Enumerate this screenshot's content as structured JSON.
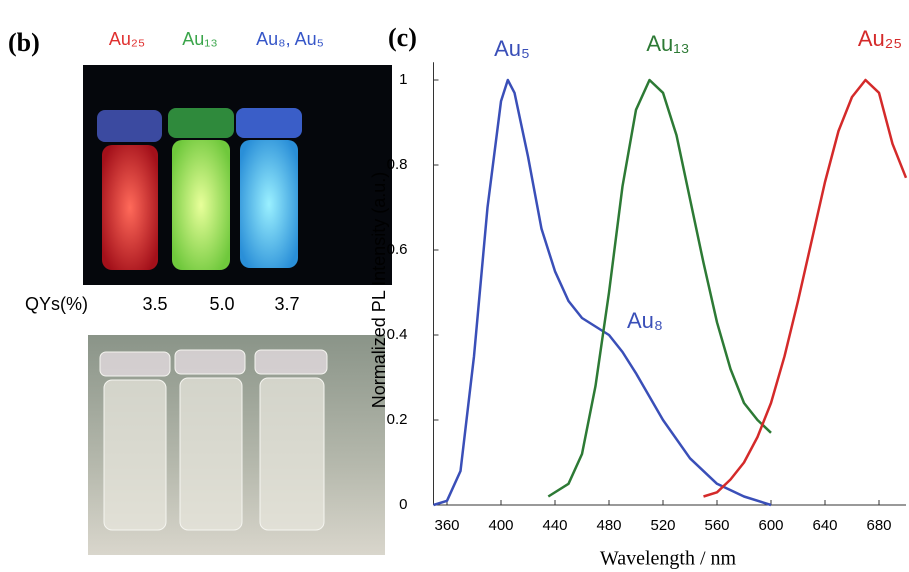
{
  "panel_b": {
    "label": "(b)",
    "photo_labels": [
      {
        "text": "Au₂₅",
        "color": "#e0302f"
      },
      {
        "text": "Au₁₃",
        "color": "#3aa54a"
      },
      {
        "text": "Au₈, Au₅",
        "color": "#3656c8"
      }
    ],
    "qy_label": "QYs(%)",
    "qy_values": [
      "3.5",
      "5.0",
      "3.7"
    ]
  },
  "chart_data": {
    "type": "line",
    "panel_label": "(c)",
    "x_label": "Wavelength / nm",
    "y_label": "Normalized PL Intensity (a.u.)",
    "xlim": [
      350,
      700
    ],
    "ylim": [
      0,
      1.03
    ],
    "xticks": [
      360,
      400,
      440,
      480,
      520,
      560,
      600,
      640,
      680
    ],
    "yticks": [
      0,
      0.2,
      0.4,
      0.6,
      0.8,
      1
    ],
    "annotation": "Au₈",
    "series": [
      {
        "name": "Au₅",
        "color": "#3a4fb8",
        "x": [
          350,
          360,
          370,
          380,
          390,
          400,
          405,
          410,
          420,
          430,
          440,
          450,
          460,
          470,
          480,
          490,
          500,
          520,
          540,
          560,
          580,
          600
        ],
        "values": [
          0,
          0.01,
          0.08,
          0.35,
          0.7,
          0.95,
          1.0,
          0.97,
          0.82,
          0.65,
          0.55,
          0.48,
          0.44,
          0.42,
          0.4,
          0.36,
          0.31,
          0.2,
          0.11,
          0.05,
          0.02,
          0.0
        ]
      },
      {
        "name": "Au₁₃",
        "color": "#2d7a35",
        "x": [
          435,
          450,
          460,
          470,
          480,
          490,
          500,
          510,
          520,
          530,
          540,
          550,
          560,
          570,
          580,
          590,
          600
        ],
        "values": [
          0.02,
          0.05,
          0.12,
          0.28,
          0.5,
          0.75,
          0.93,
          1.0,
          0.97,
          0.87,
          0.72,
          0.57,
          0.43,
          0.32,
          0.24,
          0.2,
          0.17
        ]
      },
      {
        "name": "Au₂₅",
        "color": "#d42a2a",
        "x": [
          550,
          560,
          570,
          580,
          590,
          600,
          610,
          620,
          630,
          640,
          650,
          660,
          670,
          680,
          690,
          700
        ],
        "values": [
          0.02,
          0.03,
          0.06,
          0.1,
          0.16,
          0.24,
          0.35,
          0.48,
          0.62,
          0.76,
          0.88,
          0.96,
          1.0,
          0.97,
          0.85,
          0.77
        ]
      }
    ]
  }
}
